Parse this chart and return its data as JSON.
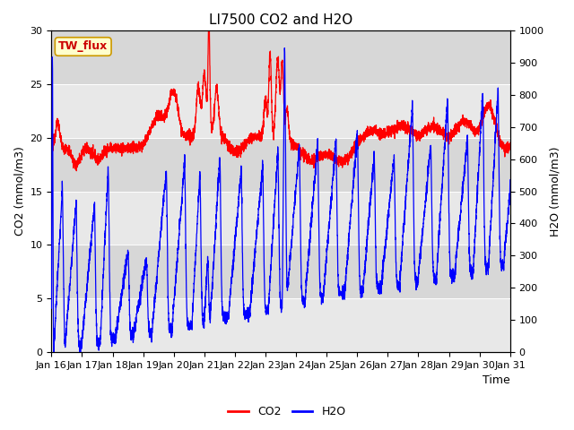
{
  "title": "LI7500 CO2 and H2O",
  "xlabel": "Time",
  "ylabel_left": "CO2 (mmol/m3)",
  "ylabel_right": "H2O (mmol/m3)",
  "ylim_left": [
    0,
    30
  ],
  "ylim_right": [
    0,
    1000
  ],
  "xtick_labels": [
    "Jan 16",
    "Jan 17",
    "Jan 18",
    "Jan 19",
    "Jan 20",
    "Jan 21",
    "Jan 22",
    "Jan 23",
    "Jan 24",
    "Jan 25",
    "Jan 26",
    "Jan 27",
    "Jan 28",
    "Jan 29",
    "Jan 30",
    "Jan 31"
  ],
  "co2_color": "#FF0000",
  "h2o_color": "#0000FF",
  "bg_color": "#E8E8E8",
  "band_color": "#D0D0D0",
  "annotation_text": "TW_flux",
  "annotation_fg": "#CC0000",
  "annotation_bg": "#FFFFCC",
  "annotation_border": "#CC9900",
  "legend_labels": [
    "CO2",
    "H2O"
  ],
  "title_fontsize": 11,
  "axis_label_fontsize": 9,
  "tick_fontsize": 8,
  "legend_fontsize": 9,
  "linewidth": 0.9
}
